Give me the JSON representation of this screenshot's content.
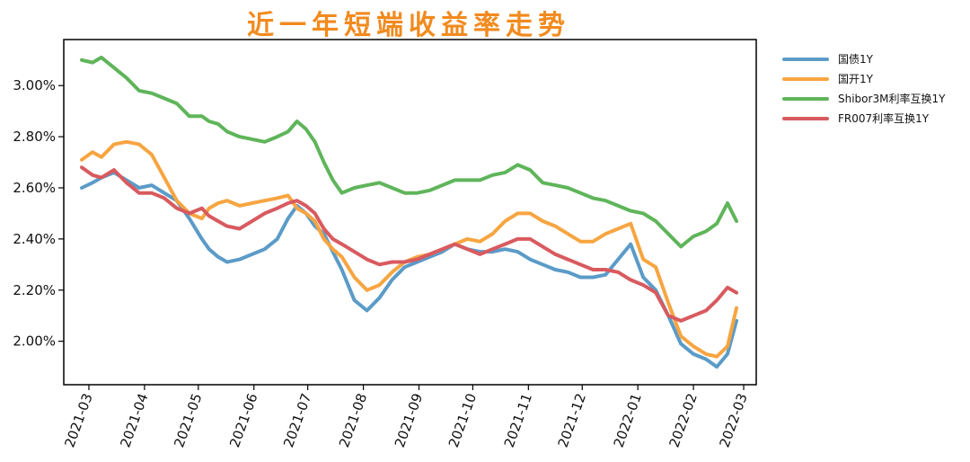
{
  "chart_data": {
    "type": "line",
    "title": "近一年短端收益率走势",
    "xlabel": "",
    "ylabel": "",
    "x_tick_labels": [
      "2021-03",
      "2021-04",
      "2021-05",
      "2021-06",
      "2021-07",
      "2021-08",
      "2021-09",
      "2021-10",
      "2021-11",
      "2021-12",
      "2022-01",
      "2022-02",
      "2022-03"
    ],
    "y_tick_values": [
      2.0,
      2.2,
      2.4,
      2.6,
      2.8,
      3.0
    ],
    "y_tick_labels": [
      "2.00%",
      "2.20%",
      "2.40%",
      "2.60%",
      "2.80%",
      "3.00%"
    ],
    "ylim": [
      1.83,
      3.18
    ],
    "xlim": [
      "2021-02-15",
      "2022-03-08"
    ],
    "grid": false,
    "legend_position": "outside-right-top",
    "series": [
      {
        "name": "国债1Y",
        "color": "#5b9bc8",
        "x": [
          "2021-02-25",
          "2021-03-03",
          "2021-03-08",
          "2021-03-15",
          "2021-03-22",
          "2021-03-29",
          "2021-04-05",
          "2021-04-12",
          "2021-04-19",
          "2021-04-26",
          "2021-05-03",
          "2021-05-07",
          "2021-05-12",
          "2021-05-17",
          "2021-05-24",
          "2021-05-31",
          "2021-06-07",
          "2021-06-14",
          "2021-06-20",
          "2021-06-25",
          "2021-06-30",
          "2021-07-05",
          "2021-07-10",
          "2021-07-15",
          "2021-07-20",
          "2021-07-27",
          "2021-08-03",
          "2021-08-10",
          "2021-08-17",
          "2021-08-24",
          "2021-08-31",
          "2021-09-07",
          "2021-09-14",
          "2021-09-21",
          "2021-09-28",
          "2021-10-05",
          "2021-10-12",
          "2021-10-19",
          "2021-10-26",
          "2021-11-02",
          "2021-11-09",
          "2021-11-16",
          "2021-11-23",
          "2021-11-30",
          "2021-12-07",
          "2021-12-14",
          "2021-12-21",
          "2021-12-28",
          "2022-01-04",
          "2022-01-11",
          "2022-01-18",
          "2022-01-25",
          "2022-02-01",
          "2022-02-08",
          "2022-02-14",
          "2022-02-20",
          "2022-02-25"
        ],
        "values": [
          2.6,
          2.62,
          2.64,
          2.66,
          2.63,
          2.6,
          2.61,
          2.58,
          2.55,
          2.48,
          2.4,
          2.36,
          2.33,
          2.31,
          2.32,
          2.34,
          2.36,
          2.4,
          2.48,
          2.53,
          2.5,
          2.45,
          2.42,
          2.35,
          2.28,
          2.16,
          2.12,
          2.17,
          2.24,
          2.29,
          2.31,
          2.33,
          2.35,
          2.38,
          2.36,
          2.35,
          2.35,
          2.36,
          2.35,
          2.32,
          2.3,
          2.28,
          2.27,
          2.25,
          2.25,
          2.26,
          2.32,
          2.38,
          2.25,
          2.2,
          2.1,
          1.99,
          1.95,
          1.93,
          1.9,
          1.95,
          2.08
        ]
      },
      {
        "name": "国开1Y",
        "color": "#f7a541",
        "x": [
          "2021-02-25",
          "2021-03-03",
          "2021-03-08",
          "2021-03-15",
          "2021-03-22",
          "2021-03-29",
          "2021-04-05",
          "2021-04-12",
          "2021-04-19",
          "2021-04-26",
          "2021-05-03",
          "2021-05-07",
          "2021-05-12",
          "2021-05-17",
          "2021-05-24",
          "2021-05-31",
          "2021-06-07",
          "2021-06-14",
          "2021-06-20",
          "2021-06-25",
          "2021-06-30",
          "2021-07-05",
          "2021-07-10",
          "2021-07-15",
          "2021-07-20",
          "2021-07-27",
          "2021-08-03",
          "2021-08-10",
          "2021-08-17",
          "2021-08-24",
          "2021-08-31",
          "2021-09-07",
          "2021-09-14",
          "2021-09-21",
          "2021-09-28",
          "2021-10-05",
          "2021-10-12",
          "2021-10-19",
          "2021-10-26",
          "2021-11-02",
          "2021-11-09",
          "2021-11-16",
          "2021-11-23",
          "2021-11-30",
          "2021-12-07",
          "2021-12-14",
          "2021-12-21",
          "2021-12-28",
          "2022-01-04",
          "2022-01-11",
          "2022-01-18",
          "2022-01-25",
          "2022-02-01",
          "2022-02-08",
          "2022-02-14",
          "2022-02-20",
          "2022-02-25"
        ],
        "values": [
          2.71,
          2.74,
          2.72,
          2.77,
          2.78,
          2.77,
          2.73,
          2.64,
          2.55,
          2.5,
          2.48,
          2.52,
          2.54,
          2.55,
          2.53,
          2.54,
          2.55,
          2.56,
          2.57,
          2.52,
          2.5,
          2.47,
          2.4,
          2.36,
          2.33,
          2.25,
          2.2,
          2.22,
          2.27,
          2.31,
          2.33,
          2.34,
          2.36,
          2.38,
          2.4,
          2.39,
          2.42,
          2.47,
          2.5,
          2.5,
          2.47,
          2.45,
          2.42,
          2.39,
          2.39,
          2.42,
          2.44,
          2.46,
          2.32,
          2.29,
          2.15,
          2.02,
          1.98,
          1.95,
          1.94,
          1.98,
          2.13
        ]
      },
      {
        "name": "Shibor3M利率互换1Y",
        "color": "#5fb55a",
        "x": [
          "2021-02-25",
          "2021-03-03",
          "2021-03-08",
          "2021-03-15",
          "2021-03-22",
          "2021-03-29",
          "2021-04-05",
          "2021-04-12",
          "2021-04-19",
          "2021-04-26",
          "2021-05-03",
          "2021-05-07",
          "2021-05-12",
          "2021-05-17",
          "2021-05-24",
          "2021-05-31",
          "2021-06-07",
          "2021-06-14",
          "2021-06-20",
          "2021-06-25",
          "2021-06-30",
          "2021-07-05",
          "2021-07-10",
          "2021-07-15",
          "2021-07-20",
          "2021-07-27",
          "2021-08-03",
          "2021-08-10",
          "2021-08-17",
          "2021-08-24",
          "2021-08-31",
          "2021-09-07",
          "2021-09-14",
          "2021-09-21",
          "2021-09-28",
          "2021-10-05",
          "2021-10-12",
          "2021-10-19",
          "2021-10-26",
          "2021-11-02",
          "2021-11-09",
          "2021-11-16",
          "2021-11-23",
          "2021-11-30",
          "2021-12-07",
          "2021-12-14",
          "2021-12-21",
          "2021-12-28",
          "2022-01-04",
          "2022-01-11",
          "2022-01-18",
          "2022-01-25",
          "2022-02-01",
          "2022-02-08",
          "2022-02-14",
          "2022-02-20",
          "2022-02-25"
        ],
        "values": [
          3.1,
          3.09,
          3.11,
          3.07,
          3.03,
          2.98,
          2.97,
          2.95,
          2.93,
          2.88,
          2.88,
          2.86,
          2.85,
          2.82,
          2.8,
          2.79,
          2.78,
          2.8,
          2.82,
          2.86,
          2.83,
          2.78,
          2.7,
          2.63,
          2.58,
          2.6,
          2.61,
          2.62,
          2.6,
          2.58,
          2.58,
          2.59,
          2.61,
          2.63,
          2.63,
          2.63,
          2.65,
          2.66,
          2.69,
          2.67,
          2.62,
          2.61,
          2.6,
          2.58,
          2.56,
          2.55,
          2.53,
          2.51,
          2.5,
          2.47,
          2.42,
          2.37,
          2.41,
          2.43,
          2.46,
          2.54,
          2.47
        ]
      },
      {
        "name": "FR007利率互换1Y",
        "color": "#d85a5f",
        "x": [
          "2021-02-25",
          "2021-03-03",
          "2021-03-08",
          "2021-03-15",
          "2021-03-22",
          "2021-03-29",
          "2021-04-05",
          "2021-04-12",
          "2021-04-19",
          "2021-04-26",
          "2021-05-03",
          "2021-05-07",
          "2021-05-12",
          "2021-05-17",
          "2021-05-24",
          "2021-05-31",
          "2021-06-07",
          "2021-06-14",
          "2021-06-20",
          "2021-06-25",
          "2021-06-30",
          "2021-07-05",
          "2021-07-10",
          "2021-07-15",
          "2021-07-20",
          "2021-07-27",
          "2021-08-03",
          "2021-08-10",
          "2021-08-17",
          "2021-08-24",
          "2021-08-31",
          "2021-09-07",
          "2021-09-14",
          "2021-09-21",
          "2021-09-28",
          "2021-10-05",
          "2021-10-12",
          "2021-10-19",
          "2021-10-26",
          "2021-11-02",
          "2021-11-09",
          "2021-11-16",
          "2021-11-23",
          "2021-11-30",
          "2021-12-07",
          "2021-12-14",
          "2021-12-21",
          "2021-12-28",
          "2022-01-04",
          "2022-01-11",
          "2022-01-18",
          "2022-01-25",
          "2022-02-01",
          "2022-02-08",
          "2022-02-14",
          "2022-02-20",
          "2022-02-25"
        ],
        "values": [
          2.68,
          2.65,
          2.64,
          2.67,
          2.62,
          2.58,
          2.58,
          2.56,
          2.52,
          2.5,
          2.52,
          2.49,
          2.47,
          2.45,
          2.44,
          2.47,
          2.5,
          2.52,
          2.54,
          2.55,
          2.53,
          2.5,
          2.44,
          2.4,
          2.38,
          2.35,
          2.32,
          2.3,
          2.31,
          2.31,
          2.32,
          2.34,
          2.36,
          2.38,
          2.36,
          2.34,
          2.36,
          2.38,
          2.4,
          2.4,
          2.37,
          2.34,
          2.32,
          2.3,
          2.28,
          2.28,
          2.27,
          2.24,
          2.22,
          2.19,
          2.1,
          2.08,
          2.1,
          2.12,
          2.16,
          2.21,
          2.19
        ]
      }
    ]
  }
}
